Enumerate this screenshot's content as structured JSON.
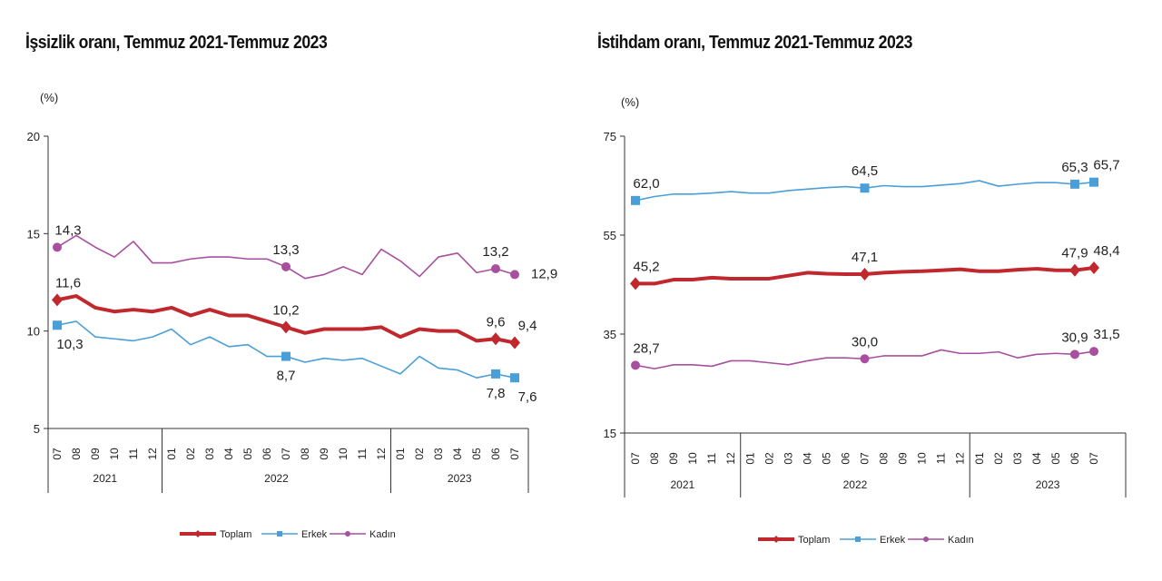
{
  "chart_data": [
    {
      "type": "line",
      "title": "İşsizlik oranı, Temmuz 2021-Temmuz 2023",
      "ylabel": "(%)",
      "ylim": [
        5,
        20
      ],
      "yticks": [
        5,
        10,
        15,
        20
      ],
      "grid": false,
      "legend_position": "bottom",
      "x": [
        "07",
        "08",
        "09",
        "10",
        "11",
        "12",
        "01",
        "02",
        "03",
        "04",
        "05",
        "06",
        "07",
        "08",
        "09",
        "10",
        "11",
        "12",
        "01",
        "02",
        "03",
        "04",
        "05",
        "06",
        "07"
      ],
      "years": [
        {
          "label": "2021",
          "months": 6
        },
        {
          "label": "2022",
          "months": 12
        },
        {
          "label": "2023",
          "months": 7
        }
      ],
      "series": [
        {
          "name": "Toplam",
          "color": "#c0282d",
          "marker": "diamond",
          "values": [
            11.6,
            11.8,
            11.2,
            11.0,
            11.1,
            11.0,
            11.2,
            10.8,
            11.1,
            10.8,
            10.8,
            10.5,
            10.2,
            9.9,
            10.1,
            10.1,
            10.1,
            10.2,
            9.7,
            10.1,
            10.0,
            10.0,
            9.5,
            9.6,
            9.4
          ],
          "labels": [
            {
              "i": 0,
              "text": "11,6",
              "pos": "above"
            },
            {
              "i": 12,
              "text": "10,2",
              "pos": "above"
            },
            {
              "i": 23,
              "text": "9,6",
              "pos": "above"
            },
            {
              "i": 24,
              "text": "9,4",
              "pos": "aboveright"
            }
          ]
        },
        {
          "name": "Erkek",
          "color": "#4a9fd8",
          "marker": "square",
          "values": [
            10.3,
            10.5,
            9.7,
            9.6,
            9.5,
            9.7,
            10.1,
            9.3,
            9.7,
            9.2,
            9.3,
            8.7,
            8.7,
            8.4,
            8.6,
            8.5,
            8.6,
            8.2,
            7.8,
            8.7,
            8.1,
            8.0,
            7.6,
            7.8,
            7.6
          ],
          "labels": [
            {
              "i": 0,
              "text": "10,3",
              "pos": "belowright"
            },
            {
              "i": 12,
              "text": "8,7",
              "pos": "below"
            },
            {
              "i": 23,
              "text": "7,8",
              "pos": "below"
            },
            {
              "i": 24,
              "text": "7,6",
              "pos": "belowright"
            }
          ]
        },
        {
          "name": "Kadın",
          "color": "#a8509f",
          "marker": "circle",
          "values": [
            14.3,
            14.9,
            14.3,
            13.8,
            14.6,
            13.5,
            13.5,
            13.7,
            13.8,
            13.8,
            13.7,
            13.7,
            13.3,
            12.7,
            12.9,
            13.3,
            12.9,
            14.2,
            13.6,
            12.8,
            13.8,
            14.0,
            13.0,
            13.2,
            12.9
          ],
          "labels": [
            {
              "i": 0,
              "text": "14,3",
              "pos": "above"
            },
            {
              "i": 12,
              "text": "13,3",
              "pos": "above"
            },
            {
              "i": 23,
              "text": "13,2",
              "pos": "above"
            },
            {
              "i": 24,
              "text": "12,9",
              "pos": "right"
            }
          ]
        }
      ]
    },
    {
      "type": "line",
      "title": "İstihdam oranı, Temmuz 2021-Temmuz 2023",
      "ylabel": "(%)",
      "ylim": [
        15,
        75
      ],
      "yticks": [
        15,
        35,
        55,
        75
      ],
      "grid": false,
      "legend_position": "bottom",
      "x": [
        "07",
        "08",
        "09",
        "10",
        "11",
        "12",
        "01",
        "02",
        "03",
        "04",
        "05",
        "06",
        "07",
        "08",
        "09",
        "10",
        "11",
        "12",
        "01",
        "02",
        "03",
        "04",
        "05",
        "06",
        "07"
      ],
      "years": [
        {
          "label": "2021",
          "months": 6
        },
        {
          "label": "2022",
          "months": 12
        },
        {
          "label": "2023",
          "months": 7
        }
      ],
      "series": [
        {
          "name": "Toplam",
          "color": "#c0282d",
          "marker": "diamond",
          "values": [
            45.2,
            45.2,
            46.0,
            46.0,
            46.4,
            46.2,
            46.2,
            46.2,
            46.8,
            47.4,
            47.2,
            47.1,
            47.1,
            47.4,
            47.6,
            47.7,
            47.9,
            48.1,
            47.7,
            47.7,
            48.0,
            48.2,
            47.9,
            47.9,
            48.4
          ],
          "labels": [
            {
              "i": 0,
              "text": "45,2",
              "pos": "above"
            },
            {
              "i": 12,
              "text": "47,1",
              "pos": "above"
            },
            {
              "i": 23,
              "text": "47,9",
              "pos": "above"
            },
            {
              "i": 24,
              "text": "48,4",
              "pos": "aboveright"
            }
          ]
        },
        {
          "name": "Erkek",
          "color": "#4a9fd8",
          "marker": "square",
          "values": [
            62.0,
            62.8,
            63.3,
            63.3,
            63.5,
            63.8,
            63.5,
            63.5,
            64.0,
            64.3,
            64.6,
            64.8,
            64.5,
            65.0,
            64.8,
            64.8,
            65.1,
            65.4,
            66.0,
            64.9,
            65.3,
            65.6,
            65.6,
            65.3,
            65.7
          ],
          "labels": [
            {
              "i": 0,
              "text": "62,0",
              "pos": "above"
            },
            {
              "i": 12,
              "text": "64,5",
              "pos": "above"
            },
            {
              "i": 23,
              "text": "65,3",
              "pos": "above"
            },
            {
              "i": 24,
              "text": "65,7",
              "pos": "aboveright"
            }
          ]
        },
        {
          "name": "Kadın",
          "color": "#a8509f",
          "marker": "circle",
          "values": [
            28.7,
            28.0,
            28.8,
            28.8,
            28.5,
            29.6,
            29.6,
            29.2,
            28.8,
            29.6,
            30.2,
            30.2,
            30.0,
            30.6,
            30.6,
            30.6,
            31.8,
            31.1,
            31.1,
            31.4,
            30.2,
            30.9,
            31.1,
            30.9,
            31.5
          ],
          "labels": [
            {
              "i": 0,
              "text": "28,7",
              "pos": "above"
            },
            {
              "i": 12,
              "text": "30,0",
              "pos": "above"
            },
            {
              "i": 23,
              "text": "30,9",
              "pos": "above"
            },
            {
              "i": 24,
              "text": "31,5",
              "pos": "aboveright"
            }
          ]
        }
      ]
    }
  ]
}
